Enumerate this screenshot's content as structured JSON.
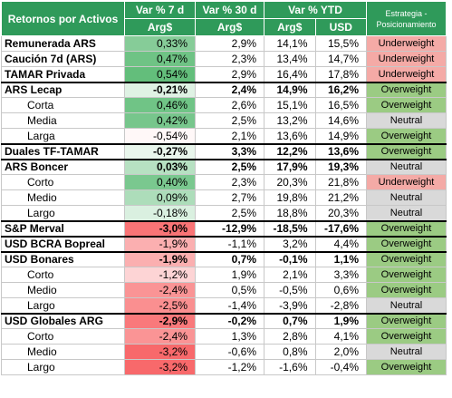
{
  "table": {
    "header": {
      "label": "Retornos por Activos",
      "periods": [
        "Var % 7 d",
        "Var % 30 d",
        "Var % YTD"
      ],
      "currencies": [
        "Arg$",
        "Arg$",
        "Arg$",
        "USD"
      ],
      "strategy": "Estrategia - Posicionamiento"
    },
    "rows": [
      {
        "label": "Remunerada ARS",
        "style": "item",
        "values": [
          "0,33%",
          "2,9%",
          "14,1%",
          "15,5%"
        ],
        "strategy": "Underweight"
      },
      {
        "label": "Caución 7d (ARS)",
        "style": "item",
        "values": [
          "0,47%",
          "2,3%",
          "13,4%",
          "14,7%"
        ],
        "strategy": "Underweight"
      },
      {
        "label": "TAMAR Privada",
        "style": "item",
        "values": [
          "0,54%",
          "2,9%",
          "16,4%",
          "17,8%"
        ],
        "strategy": "Underweight"
      },
      {
        "label": "ARS Lecap",
        "style": "group",
        "values": [
          "-0,21%",
          "2,4%",
          "14,9%",
          "16,2%"
        ],
        "strategy": "Overweight"
      },
      {
        "label": "Corta",
        "style": "sub",
        "values": [
          "0,46%",
          "2,6%",
          "15,1%",
          "16,5%"
        ],
        "strategy": "Overweight"
      },
      {
        "label": "Media",
        "style": "sub",
        "values": [
          "0,42%",
          "2,5%",
          "13,2%",
          "14,6%"
        ],
        "strategy": "Neutral"
      },
      {
        "label": "Larga",
        "style": "sub",
        "values": [
          "-0,54%",
          "2,1%",
          "13,6%",
          "14,9%"
        ],
        "strategy": "Overweight"
      },
      {
        "label": "Duales TF-TAMAR",
        "style": "group",
        "values": [
          "-0,27%",
          "3,3%",
          "12,2%",
          "13,6%"
        ],
        "strategy": "Overweight"
      },
      {
        "label": "ARS Boncer",
        "style": "group",
        "values": [
          "0,03%",
          "2,5%",
          "17,9%",
          "19,3%"
        ],
        "strategy": "Neutral"
      },
      {
        "label": "Corto",
        "style": "sub",
        "values": [
          "0,40%",
          "2,3%",
          "20,3%",
          "21,8%"
        ],
        "strategy": "Underweight"
      },
      {
        "label": "Medio",
        "style": "sub",
        "values": [
          "0,09%",
          "2,7%",
          "19,8%",
          "21,2%"
        ],
        "strategy": "Neutral"
      },
      {
        "label": "Largo",
        "style": "sub",
        "values": [
          "-0,18%",
          "2,5%",
          "18,8%",
          "20,3%"
        ],
        "strategy": "Neutral"
      },
      {
        "label": "S&P Merval",
        "style": "group",
        "values": [
          "-3,0%",
          "-12,9%",
          "-18,5%",
          "-17,6%"
        ],
        "strategy": "Overweight"
      },
      {
        "label": "USD BCRA Bopreal",
        "style": "item-top",
        "values": [
          "-1,9%",
          "-1,1%",
          "3,2%",
          "4,4%"
        ],
        "strategy": "Overweight"
      },
      {
        "label": "USD Bonares",
        "style": "group",
        "values": [
          "-1,9%",
          "0,7%",
          "-0,1%",
          "1,1%"
        ],
        "strategy": "Overweight"
      },
      {
        "label": "Corto",
        "style": "sub",
        "values": [
          "-1,2%",
          "1,9%",
          "2,1%",
          "3,3%"
        ],
        "strategy": "Overweight"
      },
      {
        "label": "Medio",
        "style": "sub",
        "values": [
          "-2,4%",
          "0,5%",
          "-0,5%",
          "0,6%"
        ],
        "strategy": "Overweight"
      },
      {
        "label": "Largo",
        "style": "sub",
        "values": [
          "-2,5%",
          "-1,4%",
          "-3,9%",
          "-2,8%"
        ],
        "strategy": "Neutral"
      },
      {
        "label": "USD Globales ARG",
        "style": "group",
        "values": [
          "-2,9%",
          "-0,2%",
          "0,7%",
          "1,9%"
        ],
        "strategy": "Overweight"
      },
      {
        "label": "Corto",
        "style": "sub",
        "values": [
          "-2,4%",
          "1,3%",
          "2,8%",
          "4,1%"
        ],
        "strategy": "Overweight"
      },
      {
        "label": "Medio",
        "style": "sub",
        "values": [
          "-3,2%",
          "-0,6%",
          "0,8%",
          "2,0%"
        ],
        "strategy": "Neutral"
      },
      {
        "label": "Largo",
        "style": "sub",
        "values": [
          "-3,2%",
          "-1,2%",
          "-1,6%",
          "-0,4%"
        ],
        "strategy": "Overweight"
      }
    ],
    "header_color": "#2f9a5a",
    "strategy_colors": {
      "Underweight": "#f4aaa6",
      "Overweight": "#9bcb83",
      "Neutral": "#d9d9d9"
    },
    "heat_colors": {
      "low": "#f8696b",
      "mid": "#ffffff",
      "high": "#63be7b"
    }
  }
}
